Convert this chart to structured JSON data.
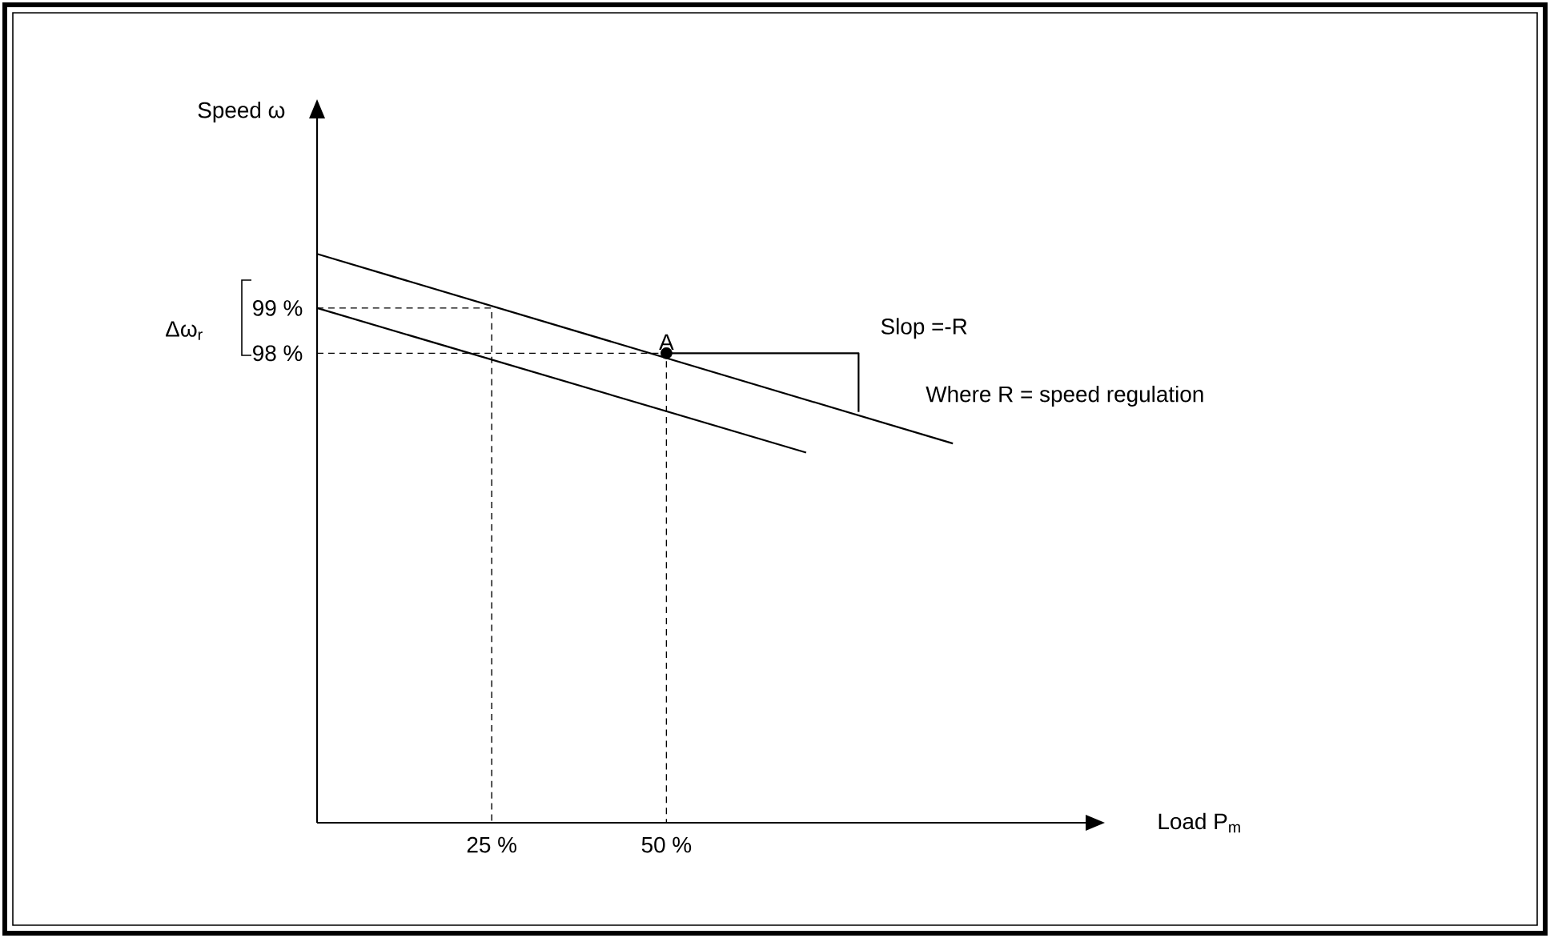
{
  "chart_data": {
    "type": "line",
    "xlabel": "Load P$_{m}$",
    "ylabel": "Speed ω",
    "xlim": [
      0,
      110
    ],
    "ylim": [
      87.6,
      103.2
    ],
    "xticks": [
      {
        "value": 25,
        "label": "25 %"
      },
      {
        "value": 50,
        "label": "50 %"
      }
    ],
    "yticks": [
      {
        "value": 98,
        "label": "98 %"
      },
      {
        "value": 99,
        "label": "99 %"
      }
    ],
    "series": [
      {
        "color": "#000000",
        "x": [
          0,
          91
        ],
        "values": [
          100.2,
          96.0
        ]
      },
      {
        "color": "#000000",
        "x": [
          0,
          70
        ],
        "values": [
          99,
          95.8
        ]
      },
      {
        "color": "#000000",
        "line_style": "dashed",
        "x": [
          0,
          25,
          25
        ],
        "values": [
          99,
          99,
          87.6
        ]
      },
      {
        "color": "#000000",
        "line_style": "dashed",
        "x": [
          0,
          50,
          50
        ],
        "values": [
          98,
          98,
          87.6
        ]
      },
      {
        "color": "#000000",
        "x": [
          50,
          77.5,
          77.5
        ],
        "values": [
          98,
          98,
          96.7
        ]
      },
      {
        "type": "scatter",
        "color": "#000000",
        "x": [
          50
        ],
        "values": [
          98
        ]
      }
    ],
    "annotations": [
      {
        "text": "A",
        "x": 50,
        "y": 98
      },
      "Slop =-R",
      "Where R = speed regulation",
      "Δω$_{r}$"
    ]
  }
}
